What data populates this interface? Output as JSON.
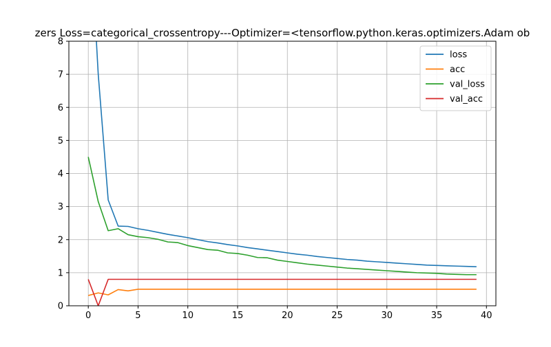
{
  "chart_data": {
    "type": "line",
    "title": "zers  Loss=categorical_crossentropy---Optimizer=<tensorflow.python.keras.optimizers.Adam ob",
    "xlabel": "",
    "ylabel": "",
    "xlim": [
      -1.95,
      40.95
    ],
    "ylim": [
      0,
      8
    ],
    "xticks": [
      0,
      5,
      10,
      15,
      20,
      25,
      30,
      35,
      40
    ],
    "yticks": [
      0,
      1,
      2,
      3,
      4,
      5,
      6,
      7,
      8
    ],
    "grid": true,
    "legend": {
      "position": "top-right"
    },
    "x": [
      0,
      1,
      2,
      3,
      4,
      5,
      6,
      7,
      8,
      9,
      10,
      11,
      12,
      13,
      14,
      15,
      16,
      17,
      18,
      19,
      20,
      21,
      22,
      23,
      24,
      25,
      26,
      27,
      28,
      29,
      30,
      31,
      32,
      33,
      34,
      35,
      36,
      37,
      38,
      39
    ],
    "series": [
      {
        "name": "loss",
        "color": "#1f77b4",
        "values": [
          12.4,
          7.0,
          3.2,
          2.41,
          2.4,
          2.33,
          2.28,
          2.22,
          2.16,
          2.11,
          2.06,
          2.0,
          1.94,
          1.9,
          1.85,
          1.81,
          1.76,
          1.72,
          1.68,
          1.64,
          1.6,
          1.56,
          1.53,
          1.49,
          1.46,
          1.43,
          1.4,
          1.38,
          1.35,
          1.33,
          1.31,
          1.29,
          1.27,
          1.25,
          1.23,
          1.22,
          1.21,
          1.2,
          1.19,
          1.18
        ]
      },
      {
        "name": "acc",
        "color": "#ff7f0e",
        "values": [
          0.31,
          0.39,
          0.33,
          0.49,
          0.45,
          0.5,
          0.5,
          0.5,
          0.5,
          0.5,
          0.5,
          0.5,
          0.5,
          0.5,
          0.5,
          0.5,
          0.5,
          0.5,
          0.5,
          0.5,
          0.5,
          0.5,
          0.5,
          0.5,
          0.5,
          0.5,
          0.5,
          0.5,
          0.5,
          0.5,
          0.5,
          0.5,
          0.5,
          0.5,
          0.5,
          0.5,
          0.5,
          0.5,
          0.5,
          0.5
        ]
      },
      {
        "name": "val_loss",
        "color": "#2ca02c",
        "values": [
          4.5,
          3.15,
          2.27,
          2.33,
          2.15,
          2.09,
          2.06,
          2.01,
          1.93,
          1.91,
          1.82,
          1.76,
          1.7,
          1.68,
          1.6,
          1.58,
          1.53,
          1.46,
          1.45,
          1.38,
          1.34,
          1.3,
          1.26,
          1.23,
          1.2,
          1.17,
          1.14,
          1.12,
          1.1,
          1.08,
          1.06,
          1.04,
          1.02,
          1.0,
          0.99,
          0.98,
          0.96,
          0.95,
          0.94,
          0.94
        ]
      },
      {
        "name": "val_acc",
        "color": "#d62728",
        "values": [
          0.8,
          0.0,
          0.8,
          0.8,
          0.8,
          0.8,
          0.8,
          0.8,
          0.8,
          0.8,
          0.8,
          0.8,
          0.8,
          0.8,
          0.8,
          0.8,
          0.8,
          0.8,
          0.8,
          0.8,
          0.8,
          0.8,
          0.8,
          0.8,
          0.8,
          0.8,
          0.8,
          0.8,
          0.8,
          0.8,
          0.8,
          0.8,
          0.8,
          0.8,
          0.8,
          0.8,
          0.8,
          0.8,
          0.8,
          0.8
        ]
      }
    ]
  }
}
